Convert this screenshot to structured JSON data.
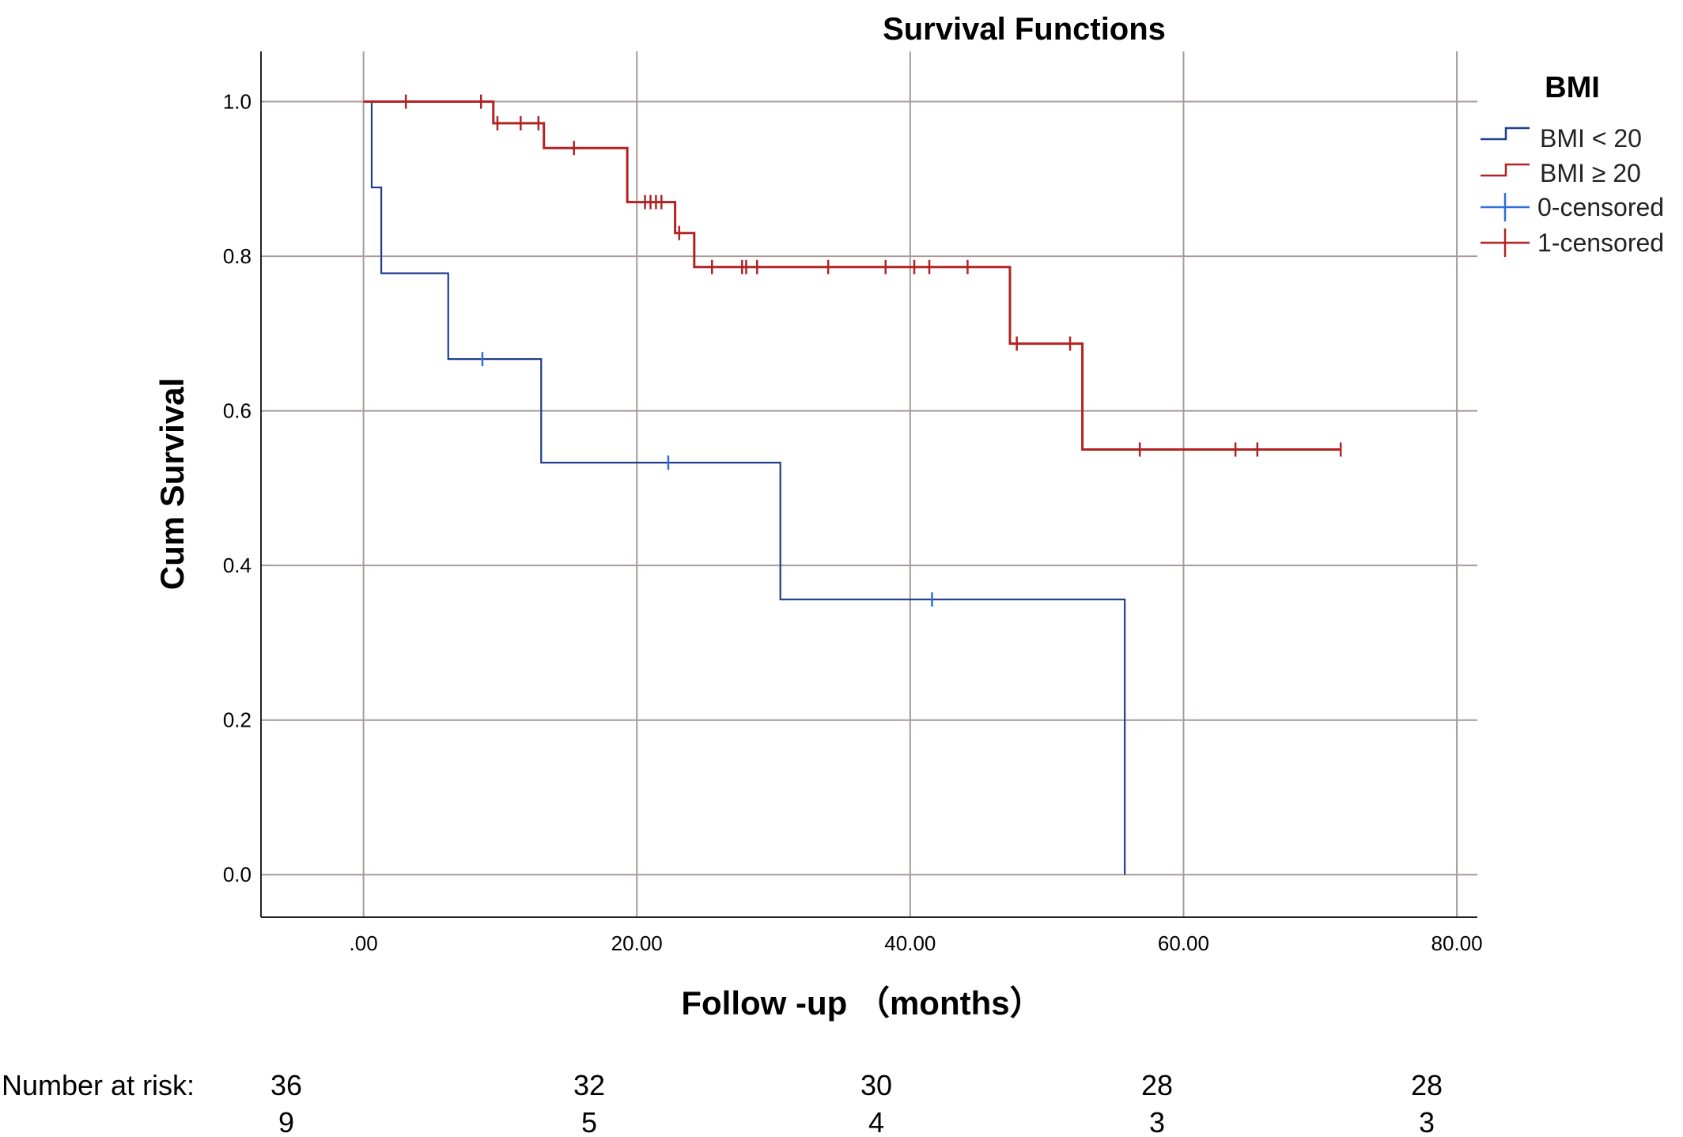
{
  "chart_data": {
    "type": "line",
    "subtype": "kaplan-meier",
    "title": "Survival Functions",
    "xlabel": "Follow -up （months）",
    "ylabel": "Cum Survival",
    "xlim": [
      -7.5,
      81.5
    ],
    "ylim": [
      -0.055,
      1.065
    ],
    "x_ticks": [
      0,
      20,
      40,
      60,
      80
    ],
    "x_tick_labels": [
      ".00",
      "20.00",
      "40.00",
      "60.00",
      "80.00"
    ],
    "y_ticks": [
      0,
      0.2,
      0.4,
      0.6,
      0.8,
      1.0
    ],
    "y_tick_labels": [
      "0.0",
      "0.2",
      "0.4",
      "0.6",
      "0.8",
      "1.0"
    ],
    "grid": true,
    "legend": {
      "title": "BMI",
      "position": "right",
      "entries": [
        "BMI < 20",
        "BMI ≥ 20",
        "0-censored",
        "1-censored"
      ]
    },
    "series": [
      {
        "name": "BMI < 20",
        "color": "#1f3d8a",
        "step_x": [
          0,
          0.6,
          1.3,
          6.2,
          13.0,
          30.5,
          55.7,
          55.7
        ],
        "step_y": [
          1.0,
          0.889,
          0.778,
          0.667,
          0.533,
          0.356,
          0.356,
          0.0
        ],
        "censored_x": [
          8.7,
          22.3,
          41.6
        ],
        "censored_y": [
          0.667,
          0.533,
          0.356
        ]
      },
      {
        "name": "BMI ≥ 20",
        "color": "#b22222",
        "step_x": [
          0,
          9.5,
          13.2,
          19.3,
          22.8,
          24.2,
          47.3,
          52.6,
          71.5
        ],
        "step_y": [
          1.0,
          0.972,
          0.94,
          0.87,
          0.83,
          0.786,
          0.687,
          0.55,
          0.55
        ],
        "censored_x": [
          3.1,
          8.6,
          9.8,
          11.5,
          12.8,
          15.4,
          20.6,
          21.0,
          21.4,
          21.8,
          23.1,
          25.5,
          27.7,
          28.0,
          28.8,
          34.0,
          38.2,
          40.3,
          41.4,
          44.2,
          47.8,
          51.7,
          56.8,
          63.8,
          65.4,
          71.5
        ],
        "censored_y": [
          1.0,
          1.0,
          0.972,
          0.972,
          0.972,
          0.94,
          0.87,
          0.87,
          0.87,
          0.87,
          0.83,
          0.786,
          0.786,
          0.786,
          0.786,
          0.786,
          0.786,
          0.786,
          0.786,
          0.786,
          0.687,
          0.687,
          0.55,
          0.55,
          0.55,
          0.55
        ]
      }
    ],
    "number_at_risk": {
      "label": "Number at risk:",
      "rows": [
        [
          "36",
          "32",
          "30",
          "28",
          "28"
        ],
        [
          "9",
          "5",
          "4",
          "3",
          "3"
        ]
      ]
    }
  },
  "colors": {
    "grid": "#a89a9a",
    "axis": "#222222",
    "censor_blue": "#2e6fd8",
    "censor_red": "#b22222"
  }
}
